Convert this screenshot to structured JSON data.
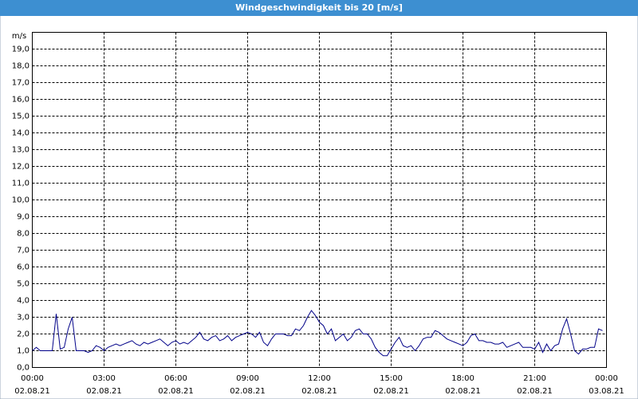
{
  "chart_data": {
    "type": "line",
    "title": "Windgeschwindigkeit bis 20 [m/s]",
    "y_label": "m/s",
    "x": [
      "2021-08-02T00:00",
      "2021-08-02T00:10",
      "2021-08-02T00:20",
      "2021-08-02T00:30",
      "2021-08-02T00:40",
      "2021-08-02T00:50",
      "2021-08-02T01:00",
      "2021-08-02T01:10",
      "2021-08-02T01:20",
      "2021-08-02T01:30",
      "2021-08-02T01:40",
      "2021-08-02T01:50",
      "2021-08-02T02:00",
      "2021-08-02T02:10",
      "2021-08-02T02:20",
      "2021-08-02T02:30",
      "2021-08-02T02:40",
      "2021-08-02T02:50",
      "2021-08-02T03:00",
      "2021-08-02T03:10",
      "2021-08-02T03:20",
      "2021-08-02T03:30",
      "2021-08-02T03:40",
      "2021-08-02T03:50",
      "2021-08-02T04:00",
      "2021-08-02T04:10",
      "2021-08-02T04:20",
      "2021-08-02T04:30",
      "2021-08-02T04:40",
      "2021-08-02T04:50",
      "2021-08-02T05:00",
      "2021-08-02T05:10",
      "2021-08-02T05:20",
      "2021-08-02T05:30",
      "2021-08-02T05:40",
      "2021-08-02T05:50",
      "2021-08-02T06:00",
      "2021-08-02T06:10",
      "2021-08-02T06:20",
      "2021-08-02T06:30",
      "2021-08-02T06:40",
      "2021-08-02T06:50",
      "2021-08-02T07:00",
      "2021-08-02T07:10",
      "2021-08-02T07:20",
      "2021-08-02T07:30",
      "2021-08-02T07:40",
      "2021-08-02T07:50",
      "2021-08-02T08:00",
      "2021-08-02T08:10",
      "2021-08-02T08:20",
      "2021-08-02T08:30",
      "2021-08-02T08:40",
      "2021-08-02T08:50",
      "2021-08-02T09:00",
      "2021-08-02T09:10",
      "2021-08-02T09:20",
      "2021-08-02T09:30",
      "2021-08-02T09:40",
      "2021-08-02T09:50",
      "2021-08-02T10:00",
      "2021-08-02T10:10",
      "2021-08-02T10:20",
      "2021-08-02T10:30",
      "2021-08-02T10:40",
      "2021-08-02T10:50",
      "2021-08-02T11:00",
      "2021-08-02T11:10",
      "2021-08-02T11:20",
      "2021-08-02T11:30",
      "2021-08-02T11:40",
      "2021-08-02T11:50",
      "2021-08-02T12:00",
      "2021-08-02T12:10",
      "2021-08-02T12:20",
      "2021-08-02T12:30",
      "2021-08-02T12:40",
      "2021-08-02T12:50",
      "2021-08-02T13:00",
      "2021-08-02T13:10",
      "2021-08-02T13:20",
      "2021-08-02T13:30",
      "2021-08-02T13:40",
      "2021-08-02T13:50",
      "2021-08-02T14:00",
      "2021-08-02T14:10",
      "2021-08-02T14:20",
      "2021-08-02T14:30",
      "2021-08-02T14:40",
      "2021-08-02T14:50",
      "2021-08-02T15:00",
      "2021-08-02T15:10",
      "2021-08-02T15:20",
      "2021-08-02T15:30",
      "2021-08-02T15:40",
      "2021-08-02T15:50",
      "2021-08-02T16:00",
      "2021-08-02T16:10",
      "2021-08-02T16:20",
      "2021-08-02T16:30",
      "2021-08-02T16:40",
      "2021-08-02T16:50",
      "2021-08-02T17:00",
      "2021-08-02T17:10",
      "2021-08-02T17:20",
      "2021-08-02T17:30",
      "2021-08-02T17:40",
      "2021-08-02T17:50",
      "2021-08-02T18:00",
      "2021-08-02T18:10",
      "2021-08-02T18:20",
      "2021-08-02T18:30",
      "2021-08-02T18:40",
      "2021-08-02T18:50",
      "2021-08-02T19:00",
      "2021-08-02T19:10",
      "2021-08-02T19:20",
      "2021-08-02T19:30",
      "2021-08-02T19:40",
      "2021-08-02T19:50",
      "2021-08-02T20:00",
      "2021-08-02T20:10",
      "2021-08-02T20:20",
      "2021-08-02T20:30",
      "2021-08-02T20:40",
      "2021-08-02T20:50",
      "2021-08-02T21:00",
      "2021-08-02T21:10",
      "2021-08-02T21:20",
      "2021-08-02T21:30",
      "2021-08-02T21:40",
      "2021-08-02T21:50",
      "2021-08-02T22:00",
      "2021-08-02T22:10",
      "2021-08-02T22:20",
      "2021-08-02T22:30",
      "2021-08-02T22:40",
      "2021-08-02T22:50",
      "2021-08-02T23:00",
      "2021-08-02T23:10",
      "2021-08-02T23:20",
      "2021-08-02T23:30",
      "2021-08-02T23:40",
      "2021-08-02T23:50"
    ],
    "series": [
      {
        "color": "#000088",
        "values": [
          1.0,
          1.2,
          1.0,
          1.0,
          1.0,
          1.0,
          3.2,
          1.1,
          1.2,
          2.3,
          3.0,
          1.0,
          1.0,
          1.0,
          0.9,
          1.0,
          1.3,
          1.2,
          1.0,
          1.2,
          1.3,
          1.4,
          1.3,
          1.4,
          1.5,
          1.6,
          1.4,
          1.3,
          1.5,
          1.4,
          1.5,
          1.6,
          1.7,
          1.5,
          1.3,
          1.5,
          1.6,
          1.4,
          1.5,
          1.4,
          1.6,
          1.8,
          2.1,
          1.7,
          1.6,
          1.8,
          1.9,
          1.6,
          1.7,
          1.9,
          1.6,
          1.8,
          1.9,
          2.0,
          2.1,
          2.0,
          1.8,
          2.1,
          1.5,
          1.3,
          1.7,
          2.0,
          2.0,
          2.0,
          1.9,
          1.9,
          2.3,
          2.2,
          2.5,
          3.0,
          3.4,
          3.1,
          2.7,
          2.5,
          2.0,
          2.3,
          1.6,
          1.8,
          2.0,
          1.6,
          1.8,
          2.2,
          2.3,
          2.0,
          2.0,
          1.7,
          1.2,
          0.9,
          0.7,
          0.7,
          1.1,
          1.5,
          1.8,
          1.3,
          1.2,
          1.3,
          1.0,
          1.3,
          1.7,
          1.8,
          1.8,
          2.2,
          2.1,
          1.9,
          1.7,
          1.6,
          1.5,
          1.4,
          1.3,
          1.5,
          1.9,
          2.0,
          1.6,
          1.6,
          1.5,
          1.5,
          1.4,
          1.4,
          1.5,
          1.2,
          1.3,
          1.4,
          1.5,
          1.2,
          1.2,
          1.2,
          1.1,
          1.5,
          0.9,
          1.4,
          1.0,
          1.3,
          1.4,
          2.3,
          2.9,
          2.0,
          1.0,
          0.8,
          1.1,
          1.1,
          1.2,
          1.2,
          2.3,
          2.2
        ]
      }
    ],
    "xlim": [
      "2021-08-02T00:00",
      "2021-08-03T00:00"
    ],
    "xticks": [
      {
        "value": "2021-08-02T00:00",
        "label": [
          "00:00",
          "02.08.21"
        ]
      },
      {
        "value": "2021-08-02T03:00",
        "label": [
          "03:00",
          "02.08.21"
        ]
      },
      {
        "value": "2021-08-02T06:00",
        "label": [
          "06:00",
          "02.08.21"
        ]
      },
      {
        "value": "2021-08-02T09:00",
        "label": [
          "09:00",
          "02.08.21"
        ]
      },
      {
        "value": "2021-08-02T12:00",
        "label": [
          "12:00",
          "02.08.21"
        ]
      },
      {
        "value": "2021-08-02T15:00",
        "label": [
          "15:00",
          "02.08.21"
        ]
      },
      {
        "value": "2021-08-02T18:00",
        "label": [
          "18:00",
          "02.08.21"
        ]
      },
      {
        "value": "2021-08-02T21:00",
        "label": [
          "21:00",
          "02.08.21"
        ]
      },
      {
        "value": "2021-08-03T00:00",
        "label": [
          "00:00",
          "03.08.21"
        ]
      }
    ],
    "ylim": [
      0,
      20
    ],
    "yticks": [
      {
        "value": 0,
        "label": "0,0"
      },
      {
        "value": 1,
        "label": "1,0"
      },
      {
        "value": 2,
        "label": "2,0"
      },
      {
        "value": 3,
        "label": "3,0"
      },
      {
        "value": 4,
        "label": "4,0"
      },
      {
        "value": 5,
        "label": "5,0"
      },
      {
        "value": 6,
        "label": "6,0"
      },
      {
        "value": 7,
        "label": "7,0"
      },
      {
        "value": 8,
        "label": "8,0"
      },
      {
        "value": 9,
        "label": "9,0"
      },
      {
        "value": 10,
        "label": "10,0"
      },
      {
        "value": 11,
        "label": "11,0"
      },
      {
        "value": 12,
        "label": "12,0"
      },
      {
        "value": 13,
        "label": "13,0"
      },
      {
        "value": 14,
        "label": "14,0"
      },
      {
        "value": 15,
        "label": "15,0"
      },
      {
        "value": 16,
        "label": "16,0"
      },
      {
        "value": 17,
        "label": "17,0"
      },
      {
        "value": 18,
        "label": "18,0"
      },
      {
        "value": 19,
        "label": "19,0"
      }
    ],
    "grid": true
  }
}
